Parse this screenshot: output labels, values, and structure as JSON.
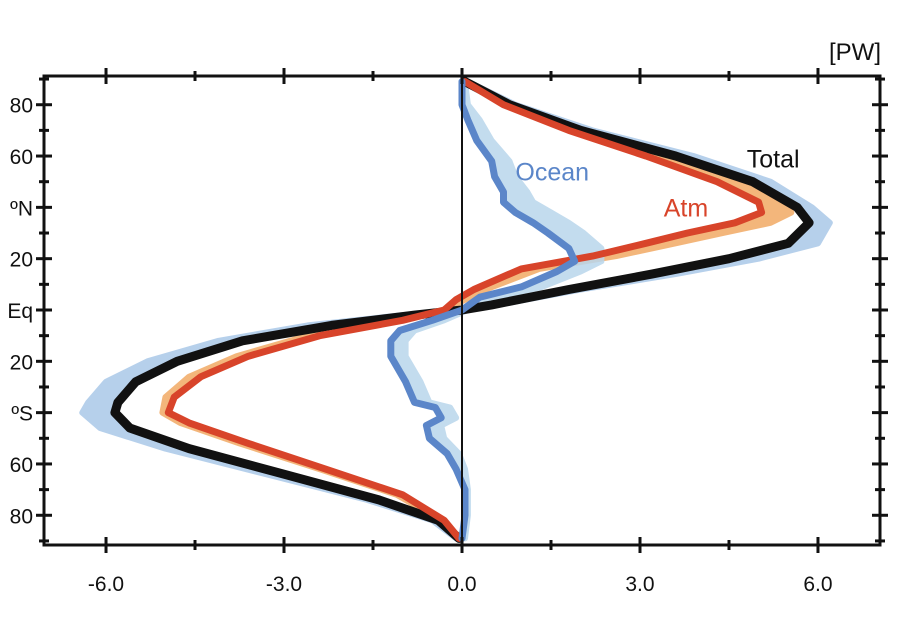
{
  "chart_data": {
    "type": "line",
    "title": "",
    "unit_label": "[PW]",
    "xlabel": "",
    "ylabel": "",
    "xlim": [
      -7.0,
      7.0
    ],
    "ylim": [
      -90,
      90
    ],
    "x_ticks": [
      {
        "value": -6,
        "label": "-6.0"
      },
      {
        "value": -3,
        "label": "-3.0"
      },
      {
        "value": 0,
        "label": "0.0"
      },
      {
        "value": 3,
        "label": "3.0"
      },
      {
        "value": 6,
        "label": "6.0"
      }
    ],
    "y_ticks": [
      {
        "value": 80,
        "label": "80"
      },
      {
        "value": 60,
        "label": "60"
      },
      {
        "value": 40,
        "label": "ºN"
      },
      {
        "value": 20,
        "label": "20"
      },
      {
        "value": 0,
        "label": "Eq"
      },
      {
        "value": -20,
        "label": "20"
      },
      {
        "value": -40,
        "label": "ºS"
      },
      {
        "value": -60,
        "label": "60"
      },
      {
        "value": -80,
        "label": "80"
      }
    ],
    "y_minor_ticks": [
      -90,
      -70,
      -50,
      -30,
      -10,
      10,
      30,
      50,
      70,
      90
    ],
    "x_minor_ticks": [
      -7.5,
      -4.5,
      -1.5,
      1.5,
      4.5,
      7.5
    ],
    "zero_line": true,
    "grid": false,
    "series": [
      {
        "name": "Total",
        "color": "#111111",
        "label_color": "#111111",
        "spread_color": "#aac8e8",
        "points": [
          [
            0.05,
            89
          ],
          [
            0.8,
            80
          ],
          [
            2.0,
            70
          ],
          [
            3.6,
            60
          ],
          [
            4.9,
            50
          ],
          [
            5.65,
            40
          ],
          [
            5.85,
            34
          ],
          [
            5.5,
            26
          ],
          [
            4.5,
            20
          ],
          [
            3.2,
            14
          ],
          [
            1.8,
            8
          ],
          [
            0.5,
            2
          ],
          [
            0,
            0
          ],
          [
            -0.8,
            -2
          ],
          [
            -2.2,
            -6
          ],
          [
            -3.7,
            -12
          ],
          [
            -4.8,
            -20
          ],
          [
            -5.5,
            -28
          ],
          [
            -5.8,
            -36
          ],
          [
            -5.85,
            -40
          ],
          [
            -5.6,
            -46
          ],
          [
            -4.6,
            -54
          ],
          [
            -3.0,
            -64
          ],
          [
            -1.4,
            -74
          ],
          [
            -0.4,
            -82
          ],
          [
            -0.05,
            -89
          ]
        ],
        "spread_points": [
          [
            0.1,
            89
          ],
          [
            0.9,
            80
          ],
          [
            2.2,
            70
          ],
          [
            3.9,
            60
          ],
          [
            5.2,
            50
          ],
          [
            5.9,
            40
          ],
          [
            6.2,
            34
          ],
          [
            6.0,
            26
          ],
          [
            5.0,
            20
          ],
          [
            3.6,
            14
          ],
          [
            2.0,
            8
          ],
          [
            0.6,
            2
          ],
          [
            0,
            0
          ],
          [
            -1.0,
            -2
          ],
          [
            -2.6,
            -6
          ],
          [
            -4.1,
            -12
          ],
          [
            -5.3,
            -20
          ],
          [
            -6.0,
            -28
          ],
          [
            -6.3,
            -36
          ],
          [
            -6.4,
            -40
          ],
          [
            -6.1,
            -46
          ],
          [
            -5.0,
            -54
          ],
          [
            -3.3,
            -64
          ],
          [
            -1.6,
            -74
          ],
          [
            -0.5,
            -82
          ],
          [
            -0.1,
            -89
          ]
        ]
      },
      {
        "name": "Atm",
        "color": "#d8442a",
        "label_color": "#d8442a",
        "spread_color": "#f2aa64",
        "points": [
          [
            0.05,
            89
          ],
          [
            0.7,
            80
          ],
          [
            1.8,
            70
          ],
          [
            3.1,
            60
          ],
          [
            4.3,
            50
          ],
          [
            5.0,
            42
          ],
          [
            5.05,
            38
          ],
          [
            4.6,
            34
          ],
          [
            3.8,
            30
          ],
          [
            3.1,
            26
          ],
          [
            2.2,
            21
          ],
          [
            1.0,
            16
          ],
          [
            0.2,
            8
          ],
          [
            -0.1,
            4
          ],
          [
            -0.3,
            0
          ],
          [
            -1.0,
            -4
          ],
          [
            -2.4,
            -10
          ],
          [
            -3.6,
            -18
          ],
          [
            -4.4,
            -26
          ],
          [
            -4.85,
            -34
          ],
          [
            -4.95,
            -40
          ],
          [
            -4.6,
            -44
          ],
          [
            -3.6,
            -52
          ],
          [
            -2.3,
            -62
          ],
          [
            -1.0,
            -72
          ],
          [
            -0.3,
            -82
          ],
          [
            -0.05,
            -89
          ]
        ],
        "spread_points": [
          [
            0.1,
            89
          ],
          [
            0.85,
            80
          ],
          [
            2.05,
            70
          ],
          [
            3.45,
            60
          ],
          [
            4.7,
            50
          ],
          [
            5.45,
            42
          ],
          [
            5.55,
            38
          ],
          [
            5.2,
            34
          ],
          [
            4.4,
            30
          ],
          [
            3.6,
            26
          ],
          [
            2.6,
            21
          ],
          [
            1.3,
            16
          ],
          [
            0.4,
            8
          ],
          [
            0.05,
            4
          ],
          [
            -0.3,
            0
          ],
          [
            -1.1,
            -4
          ],
          [
            -2.6,
            -10
          ],
          [
            -3.8,
            -18
          ],
          [
            -4.6,
            -26
          ],
          [
            -5.0,
            -34
          ],
          [
            -5.05,
            -40
          ],
          [
            -4.75,
            -44
          ],
          [
            -3.75,
            -52
          ],
          [
            -2.4,
            -62
          ],
          [
            -1.1,
            -72
          ],
          [
            -0.35,
            -82
          ],
          [
            -0.05,
            -89
          ]
        ]
      },
      {
        "name": "Ocean",
        "color": "#5b86c9",
        "label_color": "#5b86c9",
        "spread_color": "#b9d6ec",
        "points": [
          [
            0,
            89
          ],
          [
            0,
            80
          ],
          [
            0.1,
            74
          ],
          [
            0.25,
            66
          ],
          [
            0.5,
            58
          ],
          [
            0.55,
            52
          ],
          [
            0.7,
            46
          ],
          [
            0.7,
            42
          ],
          [
            0.9,
            38
          ],
          [
            1.2,
            34
          ],
          [
            1.45,
            30
          ],
          [
            1.8,
            24
          ],
          [
            1.9,
            19
          ],
          [
            1.6,
            15
          ],
          [
            1.0,
            9
          ],
          [
            0.3,
            5
          ],
          [
            0,
            0
          ],
          [
            -0.5,
            -4
          ],
          [
            -1.05,
            -8
          ],
          [
            -1.2,
            -12
          ],
          [
            -1.2,
            -18
          ],
          [
            -0.95,
            -28
          ],
          [
            -0.8,
            -36
          ],
          [
            -0.45,
            -38
          ],
          [
            -0.35,
            -42
          ],
          [
            -0.6,
            -45
          ],
          [
            -0.55,
            -50
          ],
          [
            -0.25,
            -56
          ],
          [
            -0.1,
            -62
          ],
          [
            0.05,
            -70
          ],
          [
            0.05,
            -80
          ],
          [
            0,
            -89
          ]
        ],
        "spread_points": [
          [
            0.05,
            89
          ],
          [
            0.1,
            80
          ],
          [
            0.3,
            74
          ],
          [
            0.5,
            66
          ],
          [
            0.8,
            58
          ],
          [
            0.9,
            52
          ],
          [
            1.1,
            46
          ],
          [
            1.2,
            42
          ],
          [
            1.5,
            38
          ],
          [
            1.8,
            34
          ],
          [
            2.05,
            30
          ],
          [
            2.35,
            24
          ],
          [
            2.35,
            19
          ],
          [
            2.0,
            15
          ],
          [
            1.35,
            9
          ],
          [
            0.55,
            5
          ],
          [
            0.1,
            0
          ],
          [
            -0.3,
            -4
          ],
          [
            -0.8,
            -8
          ],
          [
            -0.95,
            -12
          ],
          [
            -0.95,
            -18
          ],
          [
            -0.7,
            -28
          ],
          [
            -0.55,
            -36
          ],
          [
            -0.2,
            -38
          ],
          [
            -0.1,
            -42
          ],
          [
            -0.35,
            -45
          ],
          [
            -0.3,
            -50
          ],
          [
            -0.05,
            -56
          ],
          [
            0.05,
            -62
          ],
          [
            0.1,
            -70
          ],
          [
            0.1,
            -80
          ],
          [
            0.05,
            -89
          ]
        ]
      }
    ],
    "series_labels": [
      {
        "series": "Total",
        "text": "Total",
        "x": 4.8,
        "y": 59
      },
      {
        "series": "Ocean",
        "text": "Ocean",
        "x": 0.9,
        "y": 54
      },
      {
        "series": "Atm",
        "text": "Atm",
        "x": 3.4,
        "y": 40
      }
    ]
  }
}
